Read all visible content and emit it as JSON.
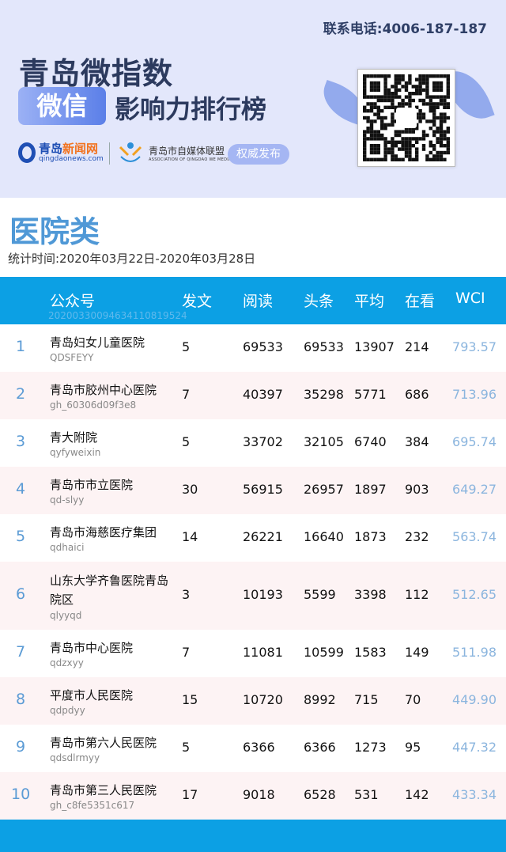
{
  "banner": {
    "phone": "联系电话:4006-187-187",
    "title_line1": "青岛微指数",
    "wechat_badge": "微信",
    "title_line2": "影响力排行榜",
    "logo_name_a": "青岛",
    "logo_name_b": "新闻网",
    "logo_domain": "qingdaonews.com",
    "assoc_name": "青岛市自媒体联盟",
    "assoc_en": "ASSOCIATION OF QINGDAO WE MEDIA",
    "publish_badge": "权威发布",
    "colors": {
      "background": "#e3e7fb",
      "badge": "#5b7fe8"
    }
  },
  "page": {
    "category": "医院类",
    "date_range": "统计时间:2020年03月22日-2020年03月28日"
  },
  "table": {
    "headers": [
      "公众号",
      "发文",
      "阅读",
      "头条",
      "平均",
      "在看",
      "WCI"
    ],
    "watermark": "20200330094634110819524",
    "colors": {
      "header": "#0ca0e4",
      "rank": "#5b9bd5",
      "wci": "#8bb5de",
      "alt_row": "#fdf3f4"
    },
    "rows": [
      {
        "rank": "1",
        "name": "青岛妇女儿童医院",
        "id": "QDSFEYY",
        "posts": "5",
        "reads": "69533",
        "top": "69533",
        "avg": "13907",
        "looking": "214",
        "wci": "793.57"
      },
      {
        "rank": "2",
        "name": "青岛市胶州中心医院",
        "id": "gh_60306d09f3e8",
        "posts": "7",
        "reads": "40397",
        "top": "35298",
        "avg": "5771",
        "looking": "686",
        "wci": "713.96"
      },
      {
        "rank": "3",
        "name": "青大附院",
        "id": "qyfyweixin",
        "posts": "5",
        "reads": "33702",
        "top": "32105",
        "avg": "6740",
        "looking": "384",
        "wci": "695.74"
      },
      {
        "rank": "4",
        "name": "青岛市市立医院",
        "id": "qd-slyy",
        "posts": "30",
        "reads": "56915",
        "top": "26957",
        "avg": "1897",
        "looking": "903",
        "wci": "649.27"
      },
      {
        "rank": "5",
        "name": "青岛市海慈医疗集团",
        "id": "qdhaici",
        "posts": "14",
        "reads": "26221",
        "top": "16640",
        "avg": "1873",
        "looking": "232",
        "wci": "563.74"
      },
      {
        "rank": "6",
        "name": "山东大学齐鲁医院青岛院区",
        "id": "qlyyqd",
        "posts": "3",
        "reads": "10193",
        "top": "5599",
        "avg": "3398",
        "looking": "112",
        "wci": "512.65"
      },
      {
        "rank": "7",
        "name": "青岛市中心医院",
        "id": "qdzxyy",
        "posts": "7",
        "reads": "11081",
        "top": "10599",
        "avg": "1583",
        "looking": "149",
        "wci": "511.98"
      },
      {
        "rank": "8",
        "name": "平度市人民医院",
        "id": "qdpdyy",
        "posts": "15",
        "reads": "10720",
        "top": "8992",
        "avg": "715",
        "looking": "70",
        "wci": "449.90"
      },
      {
        "rank": "9",
        "name": "青岛市第六人民医院",
        "id": "qdsdlrmyy",
        "posts": "5",
        "reads": "6366",
        "top": "6366",
        "avg": "1273",
        "looking": "95",
        "wci": "447.32"
      },
      {
        "rank": "10",
        "name": "青岛市第三人民医院",
        "id": "gh_c8fe5351c617",
        "posts": "17",
        "reads": "9018",
        "top": "6528",
        "avg": "531",
        "looking": "142",
        "wci": "433.34"
      }
    ]
  }
}
